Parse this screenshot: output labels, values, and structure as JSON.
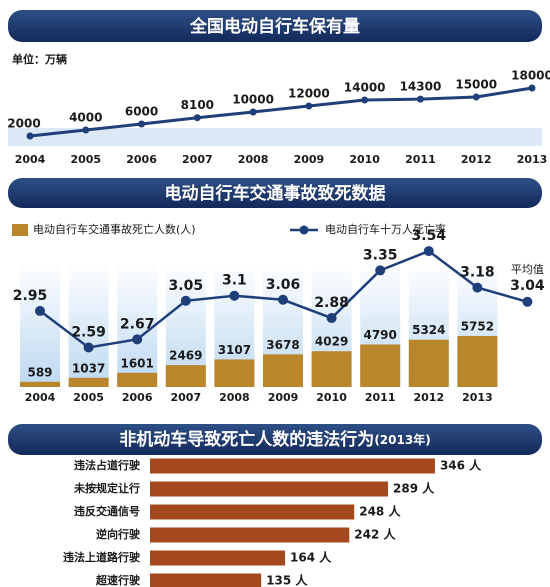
{
  "chart_data": [
    {
      "type": "line",
      "title": "全国电动自行车保有量",
      "subtitle": "单位：万辆",
      "categories": [
        "2004",
        "2005",
        "2006",
        "2007",
        "2008",
        "2009",
        "2010",
        "2011",
        "2012",
        "2013"
      ],
      "values": [
        2000,
        4000,
        6000,
        8100,
        10000,
        12000,
        14000,
        14300,
        15000,
        18000
      ],
      "color": "#1f3f7a",
      "ylim": [
        0,
        20000
      ]
    },
    {
      "type": "bar",
      "title": "电动自行车交通事故致死数据",
      "categories": [
        "2004",
        "2005",
        "2006",
        "2007",
        "2008",
        "2009",
        "2010",
        "2011",
        "2012",
        "2013"
      ],
      "series": [
        {
          "name": "电动自行车交通事故死亡人数(人)",
          "color": "#b9862c",
          "values": [
            589,
            1037,
            1601,
            2469,
            3107,
            3678,
            4029,
            4790,
            5324,
            5752
          ]
        },
        {
          "name": "电动自行车十万人死亡率",
          "color": "#1f3f7a",
          "axis": "y2",
          "values": [
            2.95,
            2.59,
            2.67,
            3.05,
            3.1,
            3.06,
            2.88,
            3.35,
            3.54,
            3.18
          ]
        }
      ],
      "average": {
        "label": "平均值",
        "value": 3.04
      },
      "ylim": [
        0,
        16000
      ],
      "y2lim": [
        2.2,
        3.6
      ]
    },
    {
      "type": "hbar",
      "title": "非机动车导致死亡人数的违法行为",
      "subtitle": "(2013年)",
      "categories": [
        "违法占道行驶",
        "未按规定让行",
        "违反交通信号",
        "逆向行驶",
        "违法上道路行驶",
        "超速行驶"
      ],
      "values": [
        346,
        289,
        248,
        242,
        164,
        135
      ],
      "value_labels": [
        "346 人",
        "289 人",
        "248 人",
        "242 人",
        "164 人",
        "135 人"
      ],
      "color": "#a4481e",
      "xlim": [
        0,
        425
      ]
    }
  ]
}
